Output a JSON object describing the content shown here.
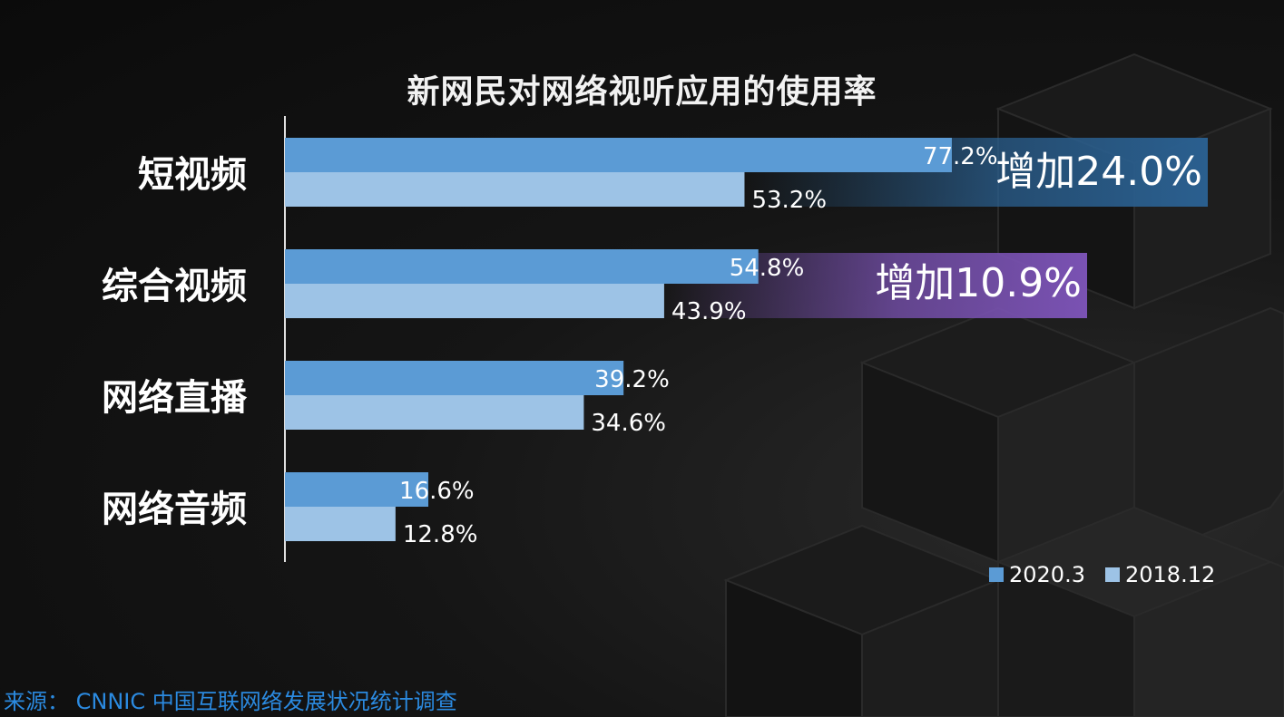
{
  "chart_data": {
    "type": "bar",
    "orientation": "horizontal",
    "title": "新网民对网络视听应用的使用率",
    "categories": [
      "短视频",
      "综合视频",
      "网络直播",
      "网络音频"
    ],
    "series": [
      {
        "name": "2020.3",
        "values": [
          77.2,
          54.8,
          39.2,
          16.6
        ],
        "labels": [
          "77.2%",
          "54.8%",
          "39.2%",
          "16.6%"
        ],
        "color": "#5b9bd5"
      },
      {
        "name": "2018.12",
        "values": [
          53.2,
          43.9,
          34.6,
          12.8
        ],
        "labels": [
          "53.2%",
          "43.9%",
          "34.6%",
          "12.8%"
        ],
        "color": "#9dc3e6"
      }
    ],
    "annotations": [
      {
        "category": "短视频",
        "text": "增加24.0%",
        "color": "#2a5f8f"
      },
      {
        "category": "综合视频",
        "text": "增加10.9%",
        "color": "#7a52b3"
      }
    ],
    "xlim": [
      0,
      100
    ],
    "grid": false,
    "legend_position": "bottom-right"
  },
  "source": "来源： CNNIC 中国互联网络发展状况统计调查",
  "colors": {
    "accent": "#2b8ae0",
    "background": "#111111"
  }
}
